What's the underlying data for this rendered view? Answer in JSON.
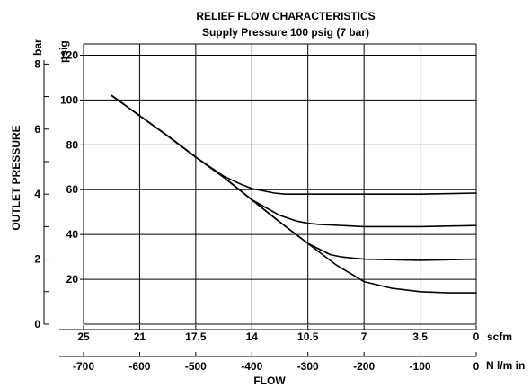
{
  "chart_data": {
    "type": "line",
    "title": "RELIEF FLOW CHARACTERISTICS",
    "subtitle": "Supply Pressure 100 psig (7 bar)",
    "xlabel": "FLOW",
    "ylabel": "OUTLET PRESSURE",
    "grid": true,
    "x_units": {
      "primary": "scfm",
      "secondary": "N l/m in"
    },
    "y_units": {
      "left": "bar",
      "right": "psig"
    },
    "xlim_nlm": [
      -700,
      0
    ],
    "ylim_psig": [
      0,
      125
    ],
    "x_ticks_nlm": [
      "-700",
      "-600",
      "-500",
      "-400",
      "-300",
      "-200",
      "-100",
      "0"
    ],
    "x_ticks_scfm": [
      "25",
      "21",
      "17.5",
      "14",
      "10.5",
      "7",
      "3.5",
      "0"
    ],
    "y_ticks_psig": [
      "20",
      "40",
      "60",
      "80",
      "100",
      "120"
    ],
    "y_ticks_bar": [
      "0",
      "2",
      "4",
      "6",
      "8"
    ],
    "series": [
      {
        "x": [
          -650,
          -600,
          -550,
          -500,
          -450,
          -420,
          -400,
          -380,
          -360,
          -340,
          -300,
          -200,
          -100,
          0
        ],
        "y": [
          102,
          93,
          84,
          74.5,
          66,
          62.5,
          60.5,
          59.5,
          58.5,
          58,
          58,
          58,
          58,
          58.5
        ]
      },
      {
        "x": [
          -650,
          -600,
          -550,
          -500,
          -450,
          -400,
          -350,
          -320,
          -300,
          -280,
          -200,
          -100,
          0
        ],
        "y": [
          102,
          93,
          84,
          74.5,
          65.5,
          55.5,
          48.5,
          46,
          45,
          44.5,
          43.5,
          43.5,
          44
        ]
      },
      {
        "x": [
          -650,
          -600,
          -550,
          -500,
          -450,
          -400,
          -350,
          -300,
          -260,
          -240,
          -220,
          -200,
          -100,
          0
        ],
        "y": [
          102,
          93,
          84,
          74.5,
          65.5,
          55.5,
          45.5,
          36,
          31,
          30,
          29.5,
          29,
          28.5,
          29
        ]
      },
      {
        "x": [
          -650,
          -600,
          -550,
          -500,
          -450,
          -400,
          -350,
          -300,
          -250,
          -200,
          -150,
          -100,
          -50,
          0
        ],
        "y": [
          102,
          93,
          84,
          74.5,
          65.5,
          55.5,
          45.5,
          36,
          26.5,
          19,
          16,
          14.5,
          14,
          14
        ]
      }
    ]
  }
}
